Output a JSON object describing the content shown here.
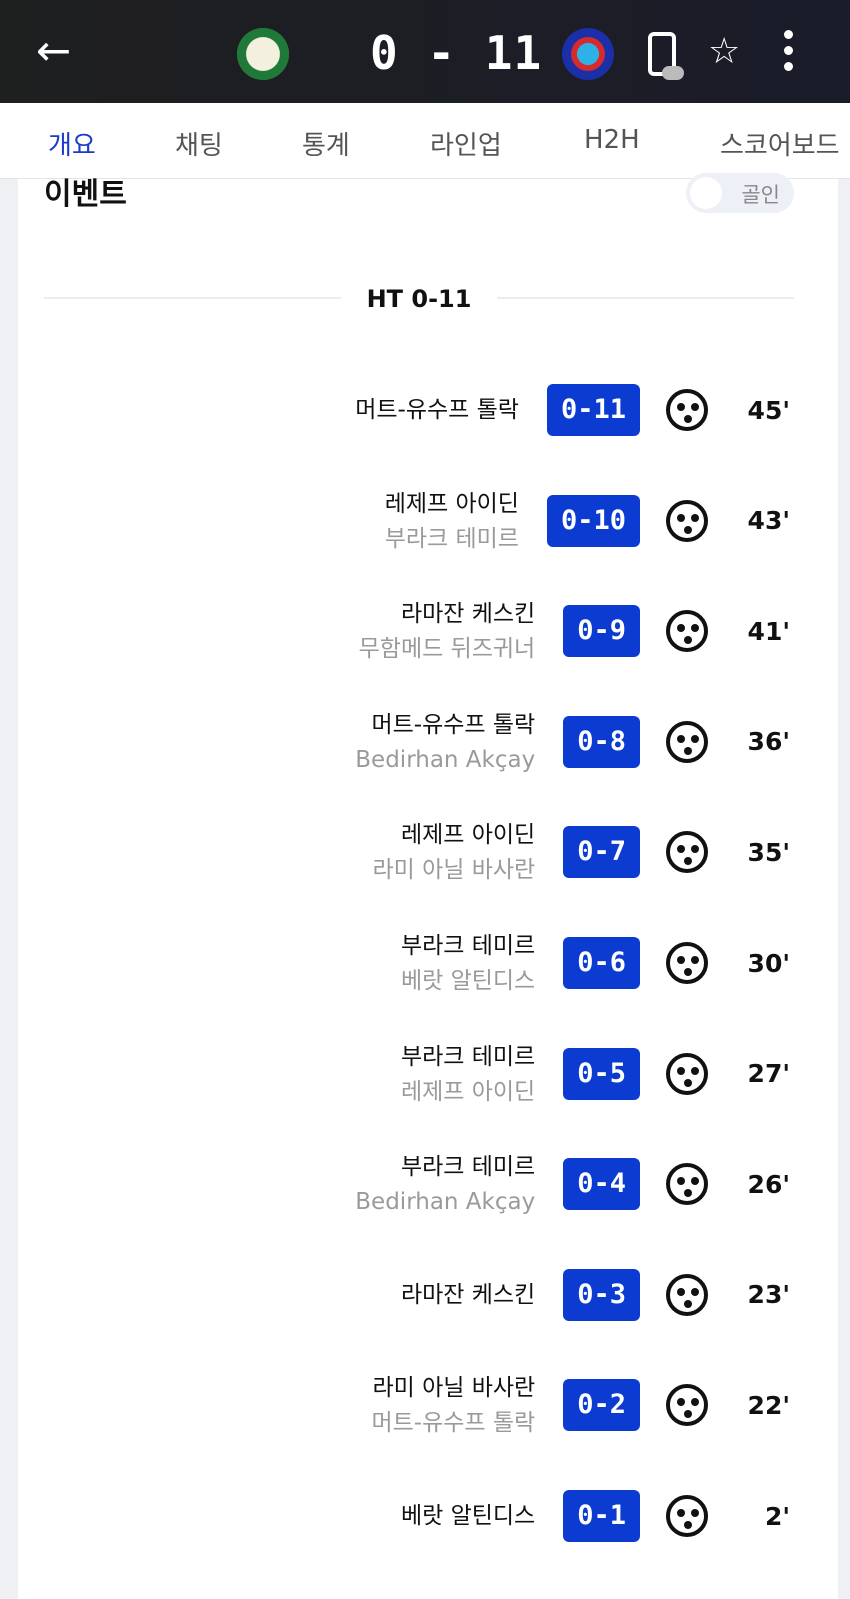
{
  "header": {
    "score": "0 - 11",
    "back_icon": "arrow-left-icon",
    "home_logo": "home-team-logo",
    "away_logo": "away-team-logo"
  },
  "tabs": [
    "개요",
    "채팅",
    "통계",
    "라인업",
    "H2H",
    "스코어보드"
  ],
  "section": {
    "title": "이벤트",
    "toggle_label": "골인",
    "toggle_on": false
  },
  "halftime": "HT 0-11",
  "colors": {
    "accent": "#1a3cc8",
    "badge": "#0b3bd0"
  },
  "events": [
    {
      "scorer": "머트-유수프 톨락",
      "assist": "",
      "score": "0-11",
      "minute": "45'"
    },
    {
      "scorer": "레제프 아이딘",
      "assist": "부라크 테미르",
      "score": "0-10",
      "minute": "43'"
    },
    {
      "scorer": "라마잔 케스킨",
      "assist": "무함메드 뒤즈귀너",
      "score": "0-9",
      "minute": "41'"
    },
    {
      "scorer": "머트-유수프 톨락",
      "assist": "Bedirhan Akçay",
      "score": "0-8",
      "minute": "36'"
    },
    {
      "scorer": "레제프 아이딘",
      "assist": "라미 아닐 바사란",
      "score": "0-7",
      "minute": "35'"
    },
    {
      "scorer": "부라크 테미르",
      "assist": "베랏 알틴디스",
      "score": "0-6",
      "minute": "30'"
    },
    {
      "scorer": "부라크 테미르",
      "assist": "레제프 아이딘",
      "score": "0-5",
      "minute": "27'"
    },
    {
      "scorer": "부라크 테미르",
      "assist": "Bedirhan Akçay",
      "score": "0-4",
      "minute": "26'"
    },
    {
      "scorer": "라마잔 케스킨",
      "assist": "",
      "score": "0-3",
      "minute": "23'"
    },
    {
      "scorer": "라미 아닐 바사란",
      "assist": "머트-유수프 톨락",
      "score": "0-2",
      "minute": "22'"
    },
    {
      "scorer": "베랏 알틴디스",
      "assist": "",
      "score": "0-1",
      "minute": "2'"
    }
  ]
}
